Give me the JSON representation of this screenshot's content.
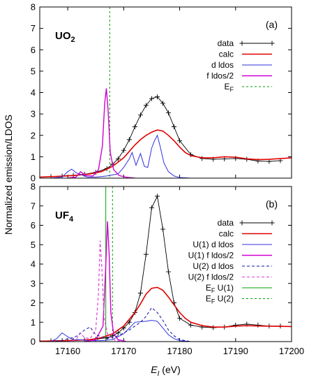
{
  "chart_data": {
    "type": "line",
    "ylabel": "Normalized emission/LDOS",
    "xlabel_main": "E",
    "xlabel_sub": "I",
    "xlabel_unit": " (eV)",
    "xlim": [
      17155,
      17200
    ],
    "x_ticks": [
      17160,
      17170,
      17180,
      17190,
      17200
    ],
    "panels": [
      {
        "name": "panel-uo2",
        "title_main": "UO",
        "title_sub": "2",
        "tag": "(a)",
        "ylim": [
          0,
          8
        ],
        "y_ticks": [
          0,
          1,
          2,
          3,
          4,
          5,
          6,
          7,
          8
        ],
        "fermi_lines": [
          {
            "x": 17167.5,
            "color": "#00a000",
            "dash": "3,3"
          }
        ],
        "legend": [
          {
            "label": "data",
            "color": "#000000",
            "dash": "",
            "marker": true
          },
          {
            "label": "calc",
            "color": "#e00000",
            "dash": "",
            "width": 1.6
          },
          {
            "label": "d ldos",
            "color": "#3030e0",
            "dash": ""
          },
          {
            "label": "f ldos/2",
            "color": "#d000d0",
            "dash": "",
            "width": 1.4
          },
          {
            "label": "E",
            "sub": "F",
            "color": "#00a000",
            "dash": "3,3"
          }
        ],
        "series": [
          {
            "name": "data",
            "color": "#000000",
            "width": 0.9,
            "markers": true,
            "x": [
              17155,
              17157,
              17159,
              17161,
              17163,
              17165,
              17167,
              17168,
              17169,
              17170,
              17171,
              17172,
              17173,
              17174,
              17175,
              17176,
              17177,
              17178,
              17179,
              17180,
              17182,
              17184,
              17186,
              17188,
              17190,
              17192,
              17194,
              17196,
              17198
            ],
            "y": [
              0.05,
              0.07,
              0.1,
              0.13,
              0.18,
              0.27,
              0.45,
              0.65,
              0.9,
              1.3,
              1.8,
              2.4,
              2.95,
              3.4,
              3.72,
              3.8,
              3.5,
              3.05,
              2.4,
              1.75,
              1.1,
              0.92,
              0.88,
              0.9,
              0.92,
              0.88,
              0.8,
              0.78,
              0.82
            ]
          },
          {
            "name": "calc",
            "color": "#e00000",
            "width": 1.6,
            "markers": false,
            "x": [
              17155,
              17158,
              17161,
              17164,
              17166,
              17168,
              17170,
              17171,
              17172,
              17173,
              17174,
              17175,
              17176,
              17177,
              17178,
              17179,
              17180,
              17181,
              17182,
              17184,
              17186,
              17188,
              17190,
              17192,
              17194,
              17196,
              17200
            ],
            "y": [
              0.05,
              0.08,
              0.12,
              0.2,
              0.3,
              0.55,
              0.95,
              1.25,
              1.55,
              1.8,
              2.0,
              2.15,
              2.25,
              2.2,
              2.0,
              1.75,
              1.45,
              1.2,
              1.05,
              0.95,
              0.95,
              1.0,
              0.98,
              0.9,
              0.87,
              0.88,
              0.95
            ]
          },
          {
            "name": "d ldos",
            "color": "#3030e0",
            "width": 1.0,
            "markers": false,
            "x": [
              17157,
              17159,
              17160,
              17160.7,
              17161.5,
              17162.5,
              17163.5,
              17165,
              17167,
              17169,
              17170,
              17171,
              17171.5,
              17172.2,
              17173,
              17173.7,
              17174.3,
              17175,
              17175.5,
              17176,
              17176.5,
              17177.2,
              17178,
              17179,
              17180,
              17182
            ],
            "y": [
              0.0,
              0.05,
              0.3,
              0.42,
              0.25,
              0.15,
              0.05,
              0.05,
              0.1,
              0.2,
              0.5,
              0.9,
              1.2,
              0.6,
              1.15,
              0.55,
              0.5,
              1.4,
              1.75,
              2.0,
              1.5,
              0.7,
              0.3,
              0.1,
              0.03,
              0.0
            ]
          },
          {
            "name": "f ldos/2",
            "color": "#d000d0",
            "width": 1.4,
            "markers": false,
            "x": [
              17160,
              17161.5,
              17162.3,
              17163.2,
              17164.5,
              17165.5,
              17166.2,
              17166.6,
              17166.9,
              17167.2,
              17167.6,
              17168.2,
              17169.2,
              17170.5,
              17172
            ],
            "y": [
              0.0,
              0.05,
              0.3,
              0.12,
              0.1,
              0.4,
              1.5,
              3.5,
              4.2,
              3.2,
              1.2,
              0.4,
              0.12,
              0.04,
              0.0
            ]
          }
        ]
      },
      {
        "name": "panel-uf4",
        "title_main": "UF",
        "title_sub": "4",
        "tag": "(b)",
        "ylim": [
          0,
          8
        ],
        "y_ticks": [
          0,
          1,
          2,
          3,
          4,
          5,
          6,
          7,
          8
        ],
        "fermi_lines": [
          {
            "x": 17166.8,
            "color": "#00a000",
            "dash": ""
          },
          {
            "x": 17168.0,
            "color": "#00a000",
            "dash": "3,3"
          }
        ],
        "legend": [
          {
            "label": "data",
            "color": "#000000",
            "dash": "",
            "marker": true
          },
          {
            "label": "calc",
            "color": "#e00000",
            "dash": "",
            "width": 1.6
          },
          {
            "label": "U(1) d ldos",
            "color": "#3030e0",
            "dash": ""
          },
          {
            "label": "U(1) f ldos/2",
            "color": "#d000d0",
            "dash": "",
            "width": 1.4
          },
          {
            "label": "U(2) d ldos",
            "color": "#1010a0",
            "dash": "4,3"
          },
          {
            "label": "U(2) f ldos/2",
            "color": "#e040e0",
            "dash": "4,3"
          },
          {
            "label": "E",
            "sub": "F",
            "suffix": " U(1)",
            "color": "#00a000",
            "dash": ""
          },
          {
            "label": "E",
            "sub": "F",
            "suffix": " U(2)",
            "color": "#00a000",
            "dash": "3,3"
          }
        ],
        "series": [
          {
            "name": "data",
            "color": "#000000",
            "width": 0.9,
            "markers": true,
            "x": [
              17155,
              17157,
              17159,
              17161,
              17163,
              17165,
              17167,
              17168,
              17169,
              17170,
              17171,
              17172,
              17173,
              17174,
              17175,
              17176,
              17177,
              17178,
              17179,
              17180,
              17182,
              17184,
              17186,
              17188,
              17190,
              17192,
              17194,
              17196,
              17198
            ],
            "y": [
              0.03,
              0.04,
              0.05,
              0.06,
              0.08,
              0.12,
              0.2,
              0.3,
              0.45,
              0.7,
              1.0,
              1.5,
              2.5,
              4.5,
              6.9,
              7.5,
              5.8,
              3.6,
              2.0,
              1.2,
              0.85,
              0.75,
              0.72,
              0.75,
              0.85,
              0.9,
              0.85,
              0.8,
              0.8
            ]
          },
          {
            "name": "calc",
            "color": "#e00000",
            "width": 1.6,
            "markers": false,
            "x": [
              17155,
              17160,
              17164,
              17166,
              17168,
              17170,
              17172,
              17173,
              17174,
              17175,
              17176,
              17177,
              17178,
              17179,
              17180,
              17181,
              17182,
              17184,
              17186,
              17188,
              17190,
              17192,
              17195,
              17200
            ],
            "y": [
              0.02,
              0.05,
              0.1,
              0.2,
              0.4,
              0.8,
              1.5,
              1.95,
              2.45,
              2.75,
              2.8,
              2.65,
              2.3,
              1.9,
              1.5,
              1.2,
              1.0,
              0.82,
              0.75,
              0.75,
              0.8,
              0.82,
              0.8,
              0.78
            ]
          },
          {
            "name": "U(1) d ldos",
            "color": "#3030e0",
            "width": 1.0,
            "dash": "",
            "markers": false,
            "x": [
              17157,
              17158,
              17159,
              17160,
              17161,
              17162,
              17164,
              17166,
              17168,
              17170,
              17171,
              17172,
              17174,
              17175,
              17176,
              17177,
              17178,
              17179,
              17180,
              17182
            ],
            "y": [
              0.0,
              0.15,
              0.45,
              0.25,
              0.1,
              0.1,
              0.05,
              0.05,
              0.1,
              0.4,
              0.7,
              1.0,
              1.05,
              1.1,
              1.05,
              0.7,
              0.35,
              0.15,
              0.05,
              0.0
            ]
          },
          {
            "name": "U(1) f ldos/2",
            "color": "#d000d0",
            "width": 1.4,
            "dash": "",
            "markers": false,
            "x": [
              17163,
              17165,
              17166.3,
              17166.8,
              17167.1,
              17167.4,
              17167.7,
              17168.2,
              17169,
              17170.5
            ],
            "y": [
              0.0,
              0.1,
              0.8,
              4.0,
              6.2,
              4.5,
              1.5,
              0.4,
              0.1,
              0.0
            ]
          },
          {
            "name": "U(2) d ldos",
            "color": "#1010a0",
            "width": 1.0,
            "dash": "4,3",
            "markers": false,
            "x": [
              17157,
              17159,
              17160,
              17161,
              17162,
              17163,
              17164,
              17165,
              17167,
              17169,
              17171,
              17173,
              17174,
              17175,
              17176,
              17177,
              17178,
              17179,
              17180,
              17182
            ],
            "y": [
              0.0,
              0.05,
              0.15,
              0.2,
              0.35,
              0.6,
              0.75,
              0.35,
              0.15,
              0.3,
              0.6,
              1.0,
              1.3,
              1.75,
              1.5,
              1.1,
              0.6,
              0.3,
              0.1,
              0.0
            ]
          },
          {
            "name": "U(2) f ldos/2",
            "color": "#e040e0",
            "width": 1.2,
            "dash": "4,3",
            "markers": false,
            "x": [
              17160,
              17161.5,
              17162.2,
              17163,
              17164,
              17165,
              17165.5,
              17165.8,
              17166.1,
              17166.5,
              17167.2,
              17168.5,
              17170
            ],
            "y": [
              0.0,
              0.1,
              0.45,
              0.2,
              0.15,
              0.6,
              2.5,
              5.2,
              3.8,
              1.2,
              0.3,
              0.05,
              0.0
            ]
          }
        ]
      }
    ]
  }
}
